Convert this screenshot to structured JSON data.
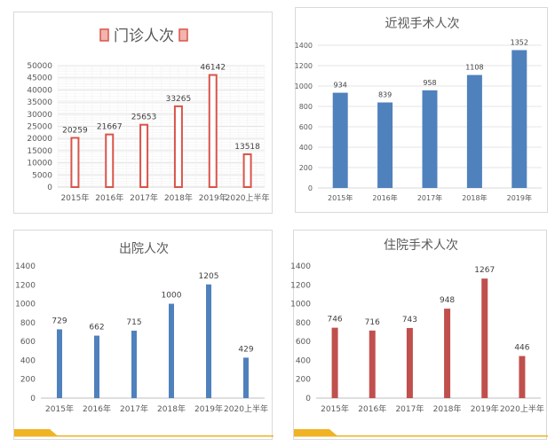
{
  "chart_data": [
    {
      "type": "bar",
      "title": "门诊人次",
      "legend_style": "title-flanked-markers",
      "categories": [
        "2015年",
        "2016年",
        "2017年",
        "2018年",
        "2019年",
        "2020上半年"
      ],
      "values": [
        20259,
        21667,
        25653,
        33265,
        46142,
        13518
      ],
      "data_labels": [
        "20259",
        "21667",
        "25653",
        "33265",
        "46142",
        "13518"
      ],
      "yticks": [
        "0",
        "5000",
        "10000",
        "15000",
        "20000",
        "25000",
        "30000",
        "35000",
        "40000",
        "45000",
        "50000"
      ],
      "ylim": [
        0,
        50000
      ],
      "grid": true,
      "bar_color": "#ffffff",
      "bar_border_color": "#d9544a",
      "xlabel": "",
      "ylabel": ""
    },
    {
      "type": "bar",
      "title": "近视手术人次",
      "categories": [
        "2015年",
        "2016年",
        "2017年",
        "2018年",
        "2019年"
      ],
      "values": [
        934,
        839,
        958,
        1108,
        1352
      ],
      "data_labels": [
        "934",
        "839",
        "958",
        "1108",
        "1352"
      ],
      "yticks": [
        "0",
        "200",
        "400",
        "600",
        "800",
        "1000",
        "1200",
        "1400"
      ],
      "ylim": [
        0,
        1400
      ],
      "grid": true,
      "bar_color": "#4f81bd",
      "xlabel": "",
      "ylabel": ""
    },
    {
      "type": "bar",
      "title": "出院人次",
      "categories": [
        "2015年",
        "2016年",
        "2017年",
        "2018年",
        "2019年",
        "2020上半年"
      ],
      "values": [
        729,
        662,
        715,
        1000,
        1205,
        429
      ],
      "data_labels": [
        "729",
        "662",
        "715",
        "1000",
        "1205",
        "429"
      ],
      "yticks": [
        "0",
        "200",
        "400",
        "600",
        "800",
        "1000",
        "1200",
        "1400"
      ],
      "ylim": [
        0,
        1400
      ],
      "grid": false,
      "bar_color": "#4f81bd",
      "accent_color": "#f0b323",
      "xlabel": "",
      "ylabel": ""
    },
    {
      "type": "bar",
      "title": "住院手术人次",
      "categories": [
        "2015年",
        "2016年",
        "2017年",
        "2018年",
        "2019年",
        "2020上半年"
      ],
      "values": [
        746,
        716,
        743,
        948,
        1267,
        446
      ],
      "data_labels": [
        "746",
        "716",
        "743",
        "948",
        "1267",
        "446"
      ],
      "yticks": [
        "0",
        "200",
        "400",
        "600",
        "800",
        "1000",
        "1200",
        "1400"
      ],
      "ylim": [
        0,
        1400
      ],
      "grid": false,
      "bar_color": "#c0504d",
      "accent_color": "#f0b323",
      "xlabel": "",
      "ylabel": ""
    }
  ]
}
